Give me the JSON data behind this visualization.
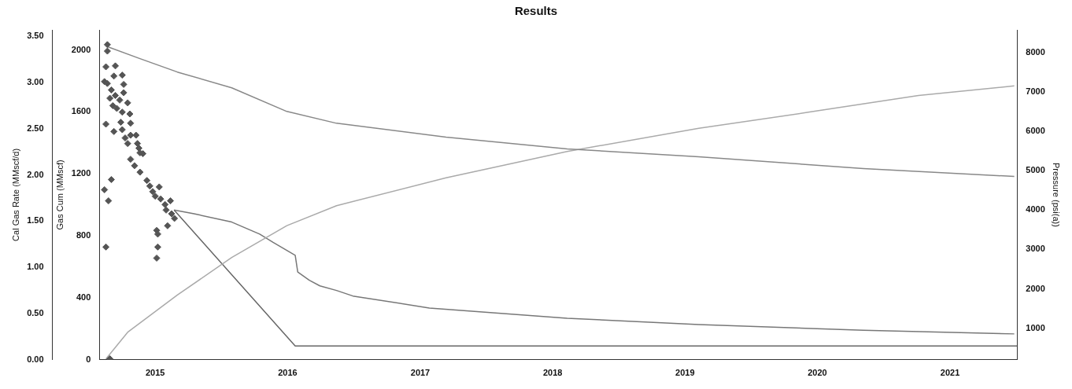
{
  "chart_data": {
    "type": "line",
    "title": "Results",
    "ylabel": "Cal Gas Rate (MMscf/d)",
    "y2label": "Gas Cum (MMscf)",
    "y3label": "Pressure (psi(a))",
    "xlim": [
      "2014-07-31",
      "2021-07-05"
    ],
    "xticks": [
      {
        "value": "2015-01-01",
        "label": "2015"
      },
      {
        "value": "2016-01-01",
        "label": "2016"
      },
      {
        "value": "2017-01-01",
        "label": "2017"
      },
      {
        "value": "2018-01-01",
        "label": "2018"
      },
      {
        "value": "2019-01-01",
        "label": "2019"
      },
      {
        "value": "2020-01-01",
        "label": "2020"
      },
      {
        "value": "2021-01-01",
        "label": "2021"
      }
    ],
    "ylim": [
      0,
      3.57
    ],
    "yticks": [
      {
        "value": 0,
        "label": "0.00"
      },
      {
        "value": 0.5,
        "label": "0.50"
      },
      {
        "value": 1,
        "label": "1.00"
      },
      {
        "value": 1.5,
        "label": "1.50"
      },
      {
        "value": 2,
        "label": "2.00"
      },
      {
        "value": 2.5,
        "label": "2.50"
      },
      {
        "value": 3,
        "label": "3.00"
      },
      {
        "value": 3.5,
        "label": "3.50"
      }
    ],
    "y2lim": [
      0,
      2130
    ],
    "y2ticks": [
      0,
      400,
      800,
      1200,
      1600,
      2000
    ],
    "y3lim": [
      200,
      8570
    ],
    "y3ticks": [
      1000,
      2000,
      3000,
      4000,
      5000,
      6000,
      7000,
      8000
    ],
    "grid": false,
    "legend": false,
    "series": [
      {
        "type": "scatter",
        "color": "#555555",
        "marker": "diamond",
        "x": [
          "2014-08-22",
          "2014-08-22",
          "2014-08-18",
          "2014-08-14",
          "2014-08-22",
          "2014-09-13",
          "2014-10-02",
          "2014-10-06",
          "2014-09-09",
          "2014-09-02",
          "2014-08-29",
          "2014-09-06",
          "2014-09-13",
          "2014-09-17",
          "2014-09-25",
          "2014-10-02",
          "2014-10-06",
          "2014-10-17",
          "2014-10-23",
          "2014-10-25",
          "2014-08-18",
          "2014-09-09",
          "2014-09-28",
          "2014-10-02",
          "2014-10-10",
          "2014-10-17",
          "2014-10-25",
          "2014-11-09",
          "2014-11-13",
          "2014-11-17",
          "2014-11-20",
          "2014-11-28",
          "2014-10-25",
          "2014-11-05",
          "2014-11-20",
          "2014-12-09",
          "2014-12-17",
          "2014-12-25",
          "2015-01-01",
          "2015-01-12",
          "2015-01-16",
          "2015-01-28",
          "2015-02-12",
          "2015-01-31",
          "2015-02-15",
          "2015-02-23",
          "2015-01-05",
          "2015-01-08",
          "2015-01-08",
          "2015-01-05",
          "2015-02-04",
          "2014-08-14",
          "2014-09-02",
          "2014-08-25",
          "2014-08-18",
          "2014-08-29"
        ],
        "values": [
          3.41,
          3.34,
          3.17,
          3.01,
          2.99,
          3.18,
          3.08,
          2.98,
          3.07,
          2.92,
          2.83,
          2.75,
          2.86,
          2.72,
          2.81,
          2.68,
          2.89,
          2.78,
          2.66,
          2.56,
          2.55,
          2.47,
          2.57,
          2.49,
          2.4,
          2.34,
          2.43,
          2.43,
          2.34,
          2.29,
          2.24,
          2.23,
          2.17,
          2.1,
          2.03,
          1.94,
          1.88,
          1.82,
          1.77,
          1.87,
          1.74,
          1.68,
          1.72,
          1.62,
          1.58,
          1.53,
          1.4,
          1.36,
          1.22,
          1.1,
          1.45,
          1.84,
          1.95,
          1.72,
          1.22,
          0.01
        ]
      },
      {
        "axis": "y3",
        "color": "#888888",
        "marker": "none",
        "x": [
          "2014-08-20",
          "2014-11-17",
          "2015-03-03",
          "2015-07-31",
          "2015-12-30",
          "2016-05-15",
          "2017-03-13",
          "2018-02-10",
          "2019-02-08",
          "2020-05-07",
          "2021-06-27"
        ],
        "values": [
          8150,
          7850,
          7500,
          7100,
          6500,
          6200,
          5850,
          5550,
          5350,
          5050,
          4850
        ]
      },
      {
        "axis": "y2",
        "color": "#aaaaaa",
        "marker": "none",
        "x": [
          "2014-08-18",
          "2014-10-18",
          "2015-03-03",
          "2015-07-31",
          "2015-12-30",
          "2016-05-15",
          "2017-03-13",
          "2018-02-10",
          "2019-02-08",
          "2019-12-07",
          "2020-10-06",
          "2021-06-27"
        ],
        "values": [
          5,
          180,
          418,
          660,
          866,
          995,
          1175,
          1345,
          1495,
          1598,
          1706,
          1768
        ]
      },
      {
        "axis": "y3",
        "color": "#666666",
        "marker": "none",
        "x": [
          "2015-02-22",
          "2016-01-22",
          "2021-07-05"
        ],
        "values": [
          4000,
          550,
          550
        ]
      },
      {
        "color": "#777777",
        "marker": "none",
        "x": [
          "2015-02-22",
          "2015-04-18",
          "2015-07-31",
          "2015-10-16",
          "2015-11-22",
          "2016-01-22",
          "2016-01-29",
          "2016-03-01",
          "2016-03-30",
          "2016-05-15",
          "2016-06-29",
          "2017-01-26",
          "2018-02-10",
          "2019-02-08",
          "2020-05-07",
          "2021-06-27"
        ],
        "values": [
          1.62,
          1.58,
          1.49,
          1.36,
          1.27,
          1.13,
          0.95,
          0.86,
          0.8,
          0.75,
          0.69,
          0.56,
          0.45,
          0.38,
          0.32,
          0.28
        ]
      }
    ]
  }
}
